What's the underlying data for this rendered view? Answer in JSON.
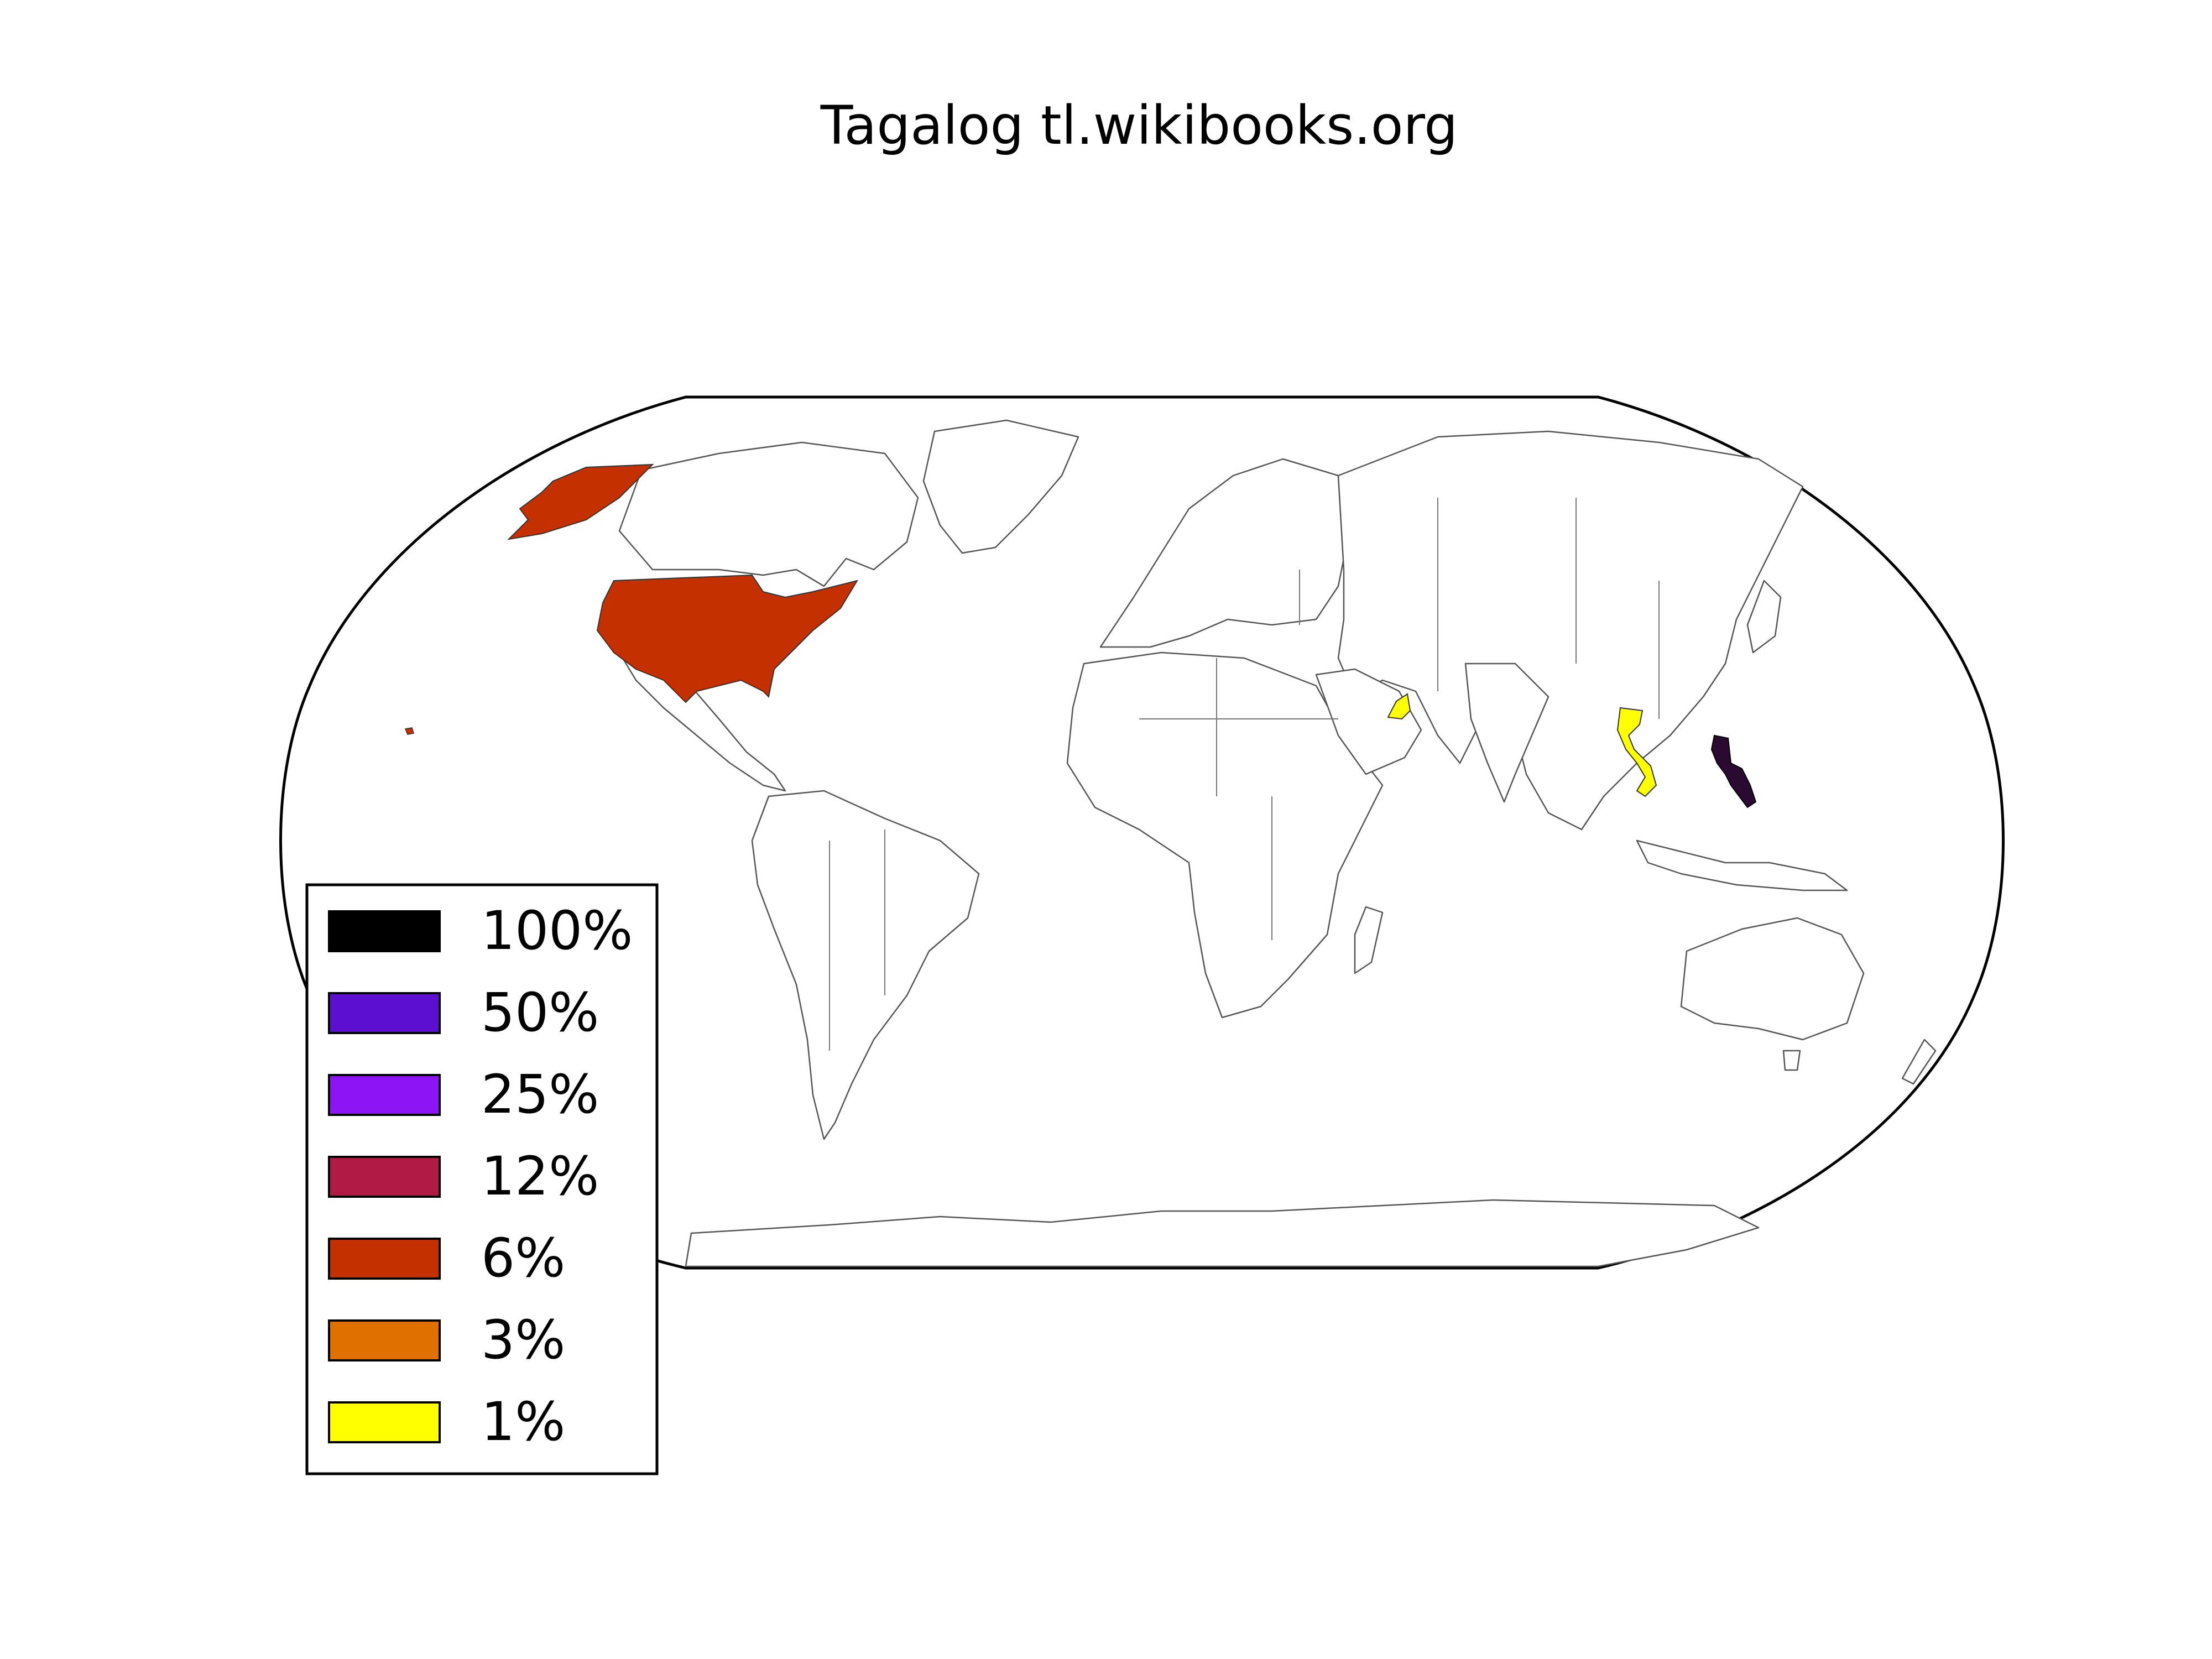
{
  "title": "Tagalog tl.wikibooks.org",
  "legend": [
    {
      "label": "100%",
      "color": "#000000"
    },
    {
      "label": "50%",
      "color": "#5d0fd1"
    },
    {
      "label": "25%",
      "color": "#8c14f5"
    },
    {
      "label": "12%",
      "color": "#b01a45"
    },
    {
      "label": "6%",
      "color": "#c53000"
    },
    {
      "label": "3%",
      "color": "#e07000"
    },
    {
      "label": "1%",
      "color": "#ffff00"
    }
  ],
  "highlighted_regions": [
    {
      "region": "United States",
      "bucket": "6%",
      "color": "#c53000"
    },
    {
      "region": "Philippines",
      "bucket": "100%",
      "color": "#2a0a30"
    },
    {
      "region": "Vietnam",
      "bucket": "1%",
      "color": "#ffff00"
    },
    {
      "region": "United Arab Emirates",
      "bucket": "1%",
      "color": "#ffff00"
    }
  ],
  "map": {
    "projection": "robinson",
    "base_fill": "#ffffff",
    "coastline_color": "#555555"
  }
}
